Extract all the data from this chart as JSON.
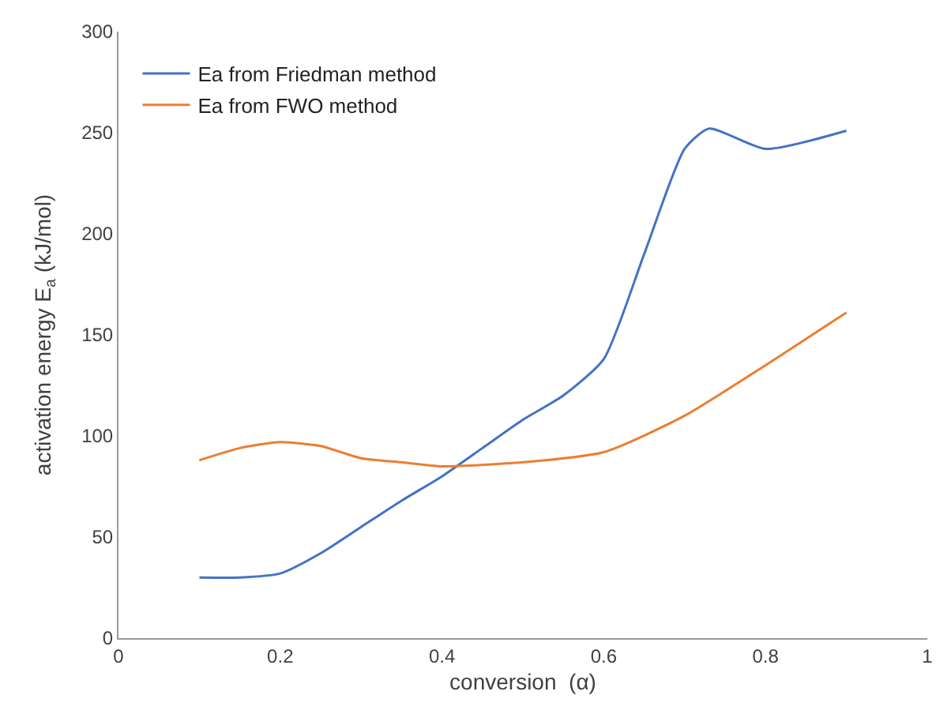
{
  "chart_data": {
    "type": "line",
    "xlabel": "conversion  (α)",
    "ylabel": "activation energy E$_{a}$ (kJ/mol)",
    "xlim": [
      0,
      1
    ],
    "xticks": [
      0,
      0.2,
      0.4,
      0.6,
      0.8,
      1
    ],
    "ylim": [
      0,
      300
    ],
    "yticks": [
      0,
      50,
      100,
      150,
      200,
      250,
      300
    ],
    "legend": "top left",
    "marker": "none",
    "line_style": "solid",
    "series": [
      {
        "name": "Ea from Friedman method",
        "color": "#4472c4",
        "x": [
          0.1,
          0.15,
          0.2,
          0.25,
          0.3,
          0.35,
          0.4,
          0.45,
          0.5,
          0.55,
          0.6,
          0.65,
          0.7,
          0.73,
          0.8,
          0.9
        ],
        "values": [
          30,
          30,
          32,
          42,
          55,
          68,
          80,
          94,
          108,
          120,
          138,
          190,
          242,
          252,
          242,
          251
        ]
      },
      {
        "name": "Ea from FWO method",
        "color": "#ed7d31",
        "x": [
          0.1,
          0.15,
          0.2,
          0.25,
          0.3,
          0.35,
          0.4,
          0.5,
          0.6,
          0.7,
          0.8,
          0.9
        ],
        "values": [
          88,
          94,
          97,
          95,
          89,
          87,
          85,
          87,
          92,
          110,
          135,
          161
        ]
      }
    ]
  }
}
